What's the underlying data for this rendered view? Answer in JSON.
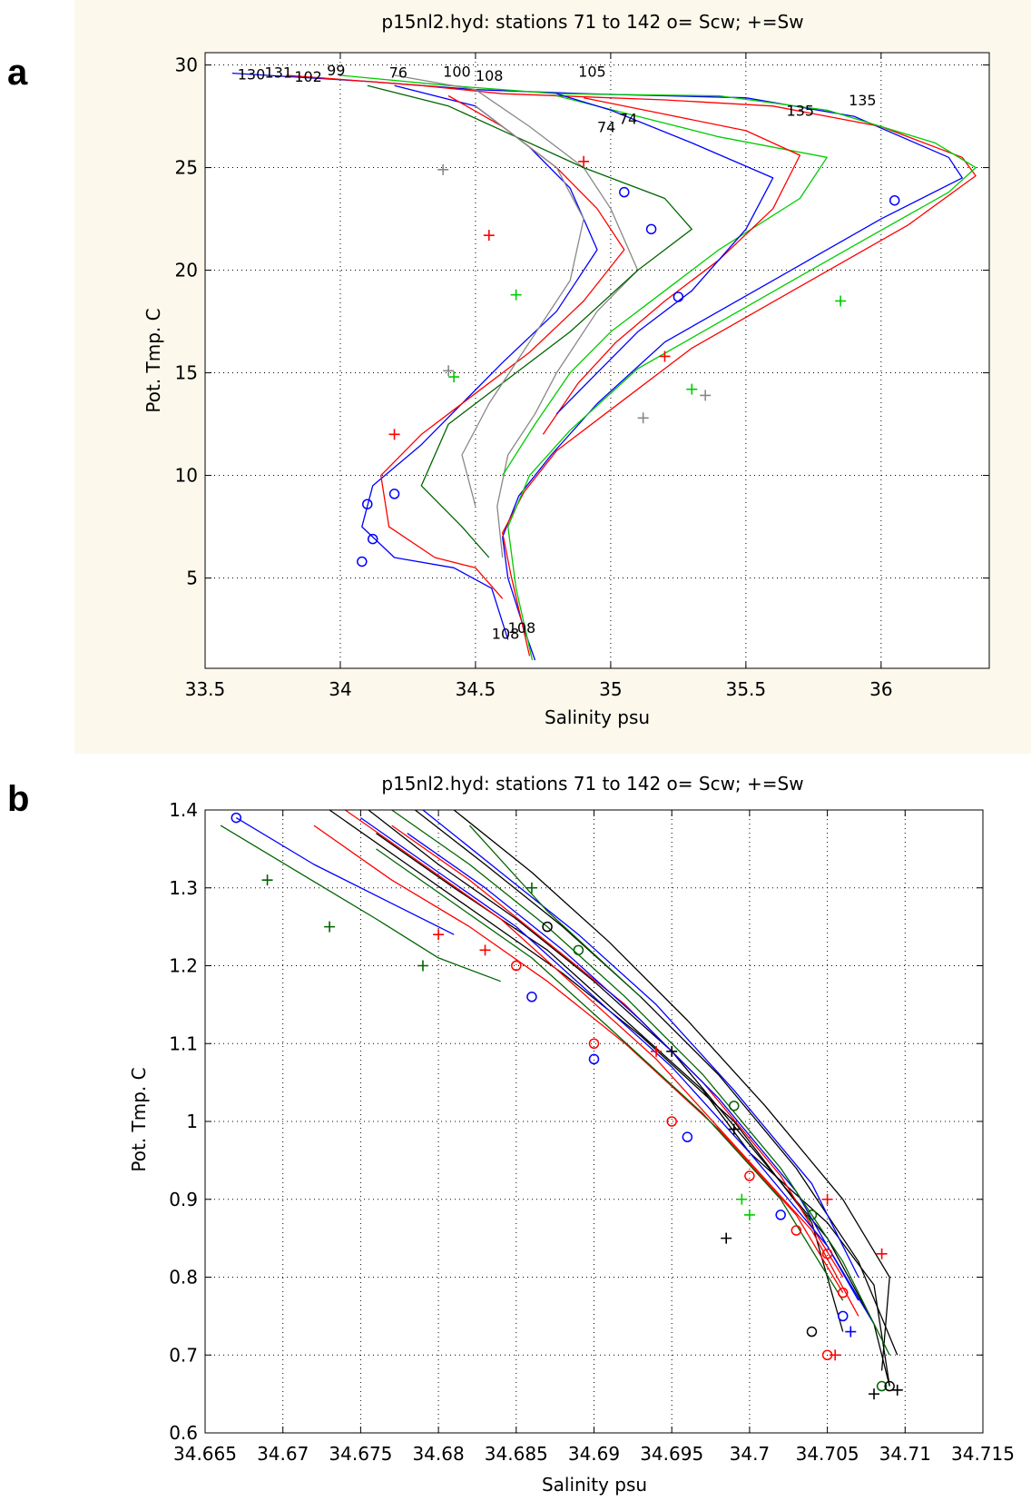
{
  "panels": [
    {
      "letter": "a"
    },
    {
      "letter": "b"
    }
  ],
  "chart_data": [
    {
      "type": "line",
      "title": "p15nl2.hyd: stations 71 to 142 o= Scw; +=Sw",
      "xlabel": "Salinity psu",
      "ylabel": "Pot. Tmp. C",
      "xlim": [
        33.5,
        36.4
      ],
      "ylim": [
        0.6,
        30.6
      ],
      "xticks": [
        33.5,
        34,
        34.5,
        35,
        35.5,
        36
      ],
      "xtick_labels": [
        "33.5",
        "34",
        "34.5",
        "35",
        "35.5",
        "36"
      ],
      "yticks": [
        5,
        10,
        15,
        20,
        25,
        30
      ],
      "ytick_labels": [
        "5",
        "10",
        "15",
        "20",
        "25",
        "30"
      ],
      "grid": true,
      "legend": "none",
      "colors": {
        "red": "#ff0000",
        "green": "#00cc00",
        "blue": "#0000ff",
        "gray": "#888888",
        "darkgreen": "#006400",
        "black": "#000000"
      },
      "series": [
        {
          "color": "#0000ff",
          "x": [
            33.6,
            34.1,
            34.5,
            34.9,
            35.5,
            35.9,
            36.25,
            36.3,
            36.0,
            35.6,
            35.2,
            34.95,
            34.78,
            34.66,
            34.6,
            34.62,
            34.68,
            34.72
          ],
          "y": [
            29.6,
            29.2,
            28.8,
            28.6,
            28.4,
            27.5,
            25.5,
            24.5,
            22.5,
            19.5,
            16.5,
            13.5,
            11.0,
            9.0,
            7.0,
            5.0,
            2.5,
            1.0
          ]
        },
        {
          "color": "#ff0000",
          "x": [
            33.8,
            34.3,
            34.6,
            35.2,
            35.6,
            36.0,
            36.3,
            36.35,
            36.1,
            35.7,
            35.3,
            35.0,
            34.8,
            34.68,
            34.6,
            34.63,
            34.7
          ],
          "y": [
            29.5,
            29.0,
            28.6,
            28.3,
            28.0,
            27.0,
            25.5,
            24.6,
            22.2,
            19.2,
            16.2,
            13.2,
            11.2,
            9.2,
            7.2,
            5.2,
            1.2
          ]
        },
        {
          "color": "#00cc00",
          "x": [
            34.0,
            34.4,
            34.8,
            35.4,
            35.8,
            36.2,
            36.35,
            36.25,
            35.9,
            35.5,
            35.1,
            34.85,
            34.7,
            34.62,
            34.65,
            34.71
          ],
          "y": [
            29.5,
            29.0,
            28.6,
            28.5,
            27.8,
            26.2,
            25.0,
            23.8,
            21.2,
            18.2,
            15.2,
            12.2,
            10.0,
            7.5,
            4.5,
            1.0
          ]
        },
        {
          "color": "#888888",
          "x": [
            34.2,
            34.5,
            34.7,
            34.9,
            35.0,
            35.1,
            34.95,
            34.8,
            34.72,
            34.62,
            34.58,
            34.6
          ],
          "y": [
            29.5,
            28.8,
            27.0,
            25.0,
            23.0,
            20.0,
            18.0,
            15.0,
            13.0,
            11.0,
            8.5,
            6.0
          ]
        },
        {
          "color": "#0000ff",
          "x": [
            34.2,
            34.5,
            34.7,
            34.85,
            34.95,
            34.8,
            34.6,
            34.45,
            34.3,
            34.12,
            34.08,
            34.2,
            34.42,
            34.56,
            34.62
          ],
          "y": [
            29.0,
            28.0,
            26.0,
            24.0,
            21.0,
            18.0,
            15.5,
            13.5,
            11.5,
            9.5,
            7.5,
            6.0,
            5.5,
            4.5,
            2.0
          ]
        },
        {
          "color": "#ff0000",
          "x": [
            34.4,
            34.6,
            34.8,
            34.95,
            35.05,
            34.9,
            34.7,
            34.5,
            34.3,
            34.15,
            34.18,
            34.35,
            34.5,
            34.6
          ],
          "y": [
            28.5,
            27.0,
            25.0,
            23.0,
            21.0,
            18.5,
            16.0,
            14.0,
            12.0,
            10.0,
            7.5,
            6.0,
            5.5,
            4.0
          ]
        },
        {
          "color": "#006400",
          "x": [
            34.1,
            34.4,
            34.65,
            34.9,
            35.2,
            35.3,
            35.1,
            34.85,
            34.6,
            34.4,
            34.3,
            34.45,
            34.55
          ],
          "y": [
            29.0,
            28.0,
            26.5,
            25.0,
            23.5,
            22.0,
            20.0,
            17.0,
            14.5,
            12.5,
            9.5,
            7.5,
            6.0
          ]
        },
        {
          "color": "#00cc00",
          "x": [
            34.8,
            35.1,
            35.4,
            35.8,
            35.7,
            35.4,
            35.2,
            35.0,
            34.85,
            34.72,
            34.6
          ],
          "y": [
            28.5,
            27.5,
            26.5,
            25.5,
            23.5,
            21.0,
            19.0,
            17.0,
            15.0,
            12.5,
            10.0
          ]
        },
        {
          "color": "#ff0000",
          "x": [
            34.9,
            35.2,
            35.5,
            35.7,
            35.6,
            35.4,
            35.2,
            35.02,
            34.88,
            34.75
          ],
          "y": [
            28.4,
            27.6,
            26.8,
            25.6,
            23.0,
            20.5,
            18.5,
            16.5,
            14.5,
            12.0
          ]
        },
        {
          "color": "#888888",
          "x": [
            34.5,
            34.65,
            34.8,
            34.9,
            34.85,
            34.7,
            34.55,
            34.45,
            34.5
          ],
          "y": [
            28.0,
            26.5,
            25.0,
            22.5,
            19.5,
            16.5,
            13.5,
            11.0,
            8.5
          ]
        },
        {
          "color": "#0000ff",
          "x": [
            34.8,
            35.0,
            35.3,
            35.6,
            35.5,
            35.3,
            35.1,
            34.95,
            34.8
          ],
          "y": [
            28.6,
            27.8,
            26.2,
            24.5,
            22.0,
            19.0,
            17.0,
            15.0,
            13.0
          ]
        }
      ],
      "markers": [
        {
          "symbol": "o",
          "color": "#0000ff",
          "x": [
            34.1,
            34.12,
            34.08,
            34.2,
            35.05,
            35.15,
            35.25,
            36.05
          ],
          "y": [
            8.6,
            6.9,
            5.8,
            9.1,
            23.8,
            22.0,
            18.7,
            23.4
          ]
        },
        {
          "symbol": "+",
          "color": "#00cc00",
          "x": [
            35.3,
            34.42,
            34.65,
            35.85
          ],
          "y": [
            14.2,
            14.8,
            18.8,
            18.5
          ]
        },
        {
          "symbol": "+",
          "color": "#888888",
          "x": [
            34.4,
            34.38,
            35.12,
            35.35
          ],
          "y": [
            15.1,
            24.9,
            12.8,
            13.9
          ]
        },
        {
          "symbol": "+",
          "color": "#ff0000",
          "x": [
            34.55,
            34.2,
            34.9,
            35.2
          ],
          "y": [
            21.7,
            12.0,
            25.3,
            15.8
          ]
        }
      ],
      "annotations": [
        {
          "text": "130",
          "x": 33.62,
          "y": 29.55
        },
        {
          "text": "131",
          "x": 33.72,
          "y": 29.65
        },
        {
          "text": "102",
          "x": 33.83,
          "y": 29.45
        },
        {
          "text": "99",
          "x": 33.95,
          "y": 29.75
        },
        {
          "text": "76",
          "x": 34.18,
          "y": 29.65
        },
        {
          "text": "100",
          "x": 34.38,
          "y": 29.7
        },
        {
          "text": "108",
          "x": 34.5,
          "y": 29.5
        },
        {
          "text": "105",
          "x": 34.88,
          "y": 29.7
        },
        {
          "text": "135",
          "x": 35.88,
          "y": 28.3
        },
        {
          "text": "135",
          "x": 35.65,
          "y": 27.8
        },
        {
          "text": "74",
          "x": 34.95,
          "y": 27.0
        },
        {
          "text": "74",
          "x": 35.03,
          "y": 27.4
        },
        {
          "text": "108",
          "x": 34.56,
          "y": 2.3
        },
        {
          "text": "108",
          "x": 34.62,
          "y": 2.6
        }
      ]
    },
    {
      "type": "line",
      "title": "p15nl2.hyd: stations 71 to 142 o= Scw; +=Sw",
      "xlabel": "Salinity psu",
      "ylabel": "Pot. Tmp. C",
      "xlim": [
        34.665,
        34.715
      ],
      "ylim": [
        0.6,
        1.4
      ],
      "xticks": [
        34.665,
        34.67,
        34.675,
        34.68,
        34.685,
        34.69,
        34.695,
        34.7,
        34.705,
        34.71,
        34.715
      ],
      "xtick_labels": [
        "34.665",
        "34.67",
        "34.675",
        "34.68",
        "34.685",
        "34.69",
        "34.695",
        "34.7",
        "34.705",
        "34.71",
        "34.715"
      ],
      "yticks": [
        0.6,
        0.7,
        0.8,
        0.9,
        1.0,
        1.1,
        1.2,
        1.3,
        1.4
      ],
      "ytick_labels": [
        "0.6",
        "0.7",
        "0.8",
        "0.9",
        "1",
        "1.1",
        "1.2",
        "1.3",
        "1.4"
      ],
      "grid": true,
      "legend": "none",
      "series": [
        {
          "color": "#000000",
          "x": [
            34.6755,
            34.68,
            34.685,
            34.69,
            34.695,
            34.7,
            34.705,
            34.708,
            34.709
          ],
          "y": [
            1.4,
            1.33,
            1.26,
            1.18,
            1.09,
            0.97,
            0.85,
            0.74,
            0.66
          ]
        },
        {
          "color": "#000000",
          "x": [
            34.6785,
            34.683,
            34.688,
            34.693,
            34.698,
            34.703,
            34.707,
            34.7095
          ],
          "y": [
            1.4,
            1.33,
            1.25,
            1.16,
            1.06,
            0.94,
            0.82,
            0.7
          ]
        },
        {
          "color": "#000000",
          "x": [
            34.681,
            34.686,
            34.691,
            34.696,
            34.701,
            34.706,
            34.709,
            34.7085
          ],
          "y": [
            1.4,
            1.32,
            1.23,
            1.13,
            1.02,
            0.9,
            0.8,
            0.68
          ]
        },
        {
          "color": "#000000",
          "x": [
            34.673,
            34.678,
            34.683,
            34.688,
            34.693,
            34.699,
            34.704,
            34.706
          ],
          "y": [
            1.4,
            1.33,
            1.26,
            1.19,
            1.11,
            1.0,
            0.87,
            0.73
          ]
        },
        {
          "color": "#000000",
          "x": [
            34.676,
            34.681,
            34.687,
            34.692,
            34.697,
            34.7,
            34.705,
            34.708,
            34.709
          ],
          "y": [
            1.37,
            1.3,
            1.22,
            1.13,
            1.04,
            0.96,
            0.87,
            0.79,
            0.66
          ]
        },
        {
          "color": "#ff0000",
          "x": [
            34.674,
            34.679,
            34.684,
            34.689,
            34.694,
            34.699,
            34.704,
            34.707
          ],
          "y": [
            1.4,
            1.33,
            1.26,
            1.17,
            1.08,
            0.97,
            0.86,
            0.75
          ]
        },
        {
          "color": "#ff0000",
          "x": [
            34.677,
            34.682,
            34.687,
            34.692,
            34.697,
            34.702,
            34.706
          ],
          "y": [
            1.38,
            1.31,
            1.23,
            1.15,
            1.05,
            0.93,
            0.8
          ]
        },
        {
          "color": "#ff0000",
          "x": [
            34.672,
            34.677,
            34.682,
            34.687,
            34.692,
            34.698,
            34.703,
            34.706
          ],
          "y": [
            1.38,
            1.31,
            1.25,
            1.18,
            1.1,
            0.99,
            0.88,
            0.78
          ]
        },
        {
          "color": "#0000ff",
          "x": [
            34.675,
            34.68,
            34.685,
            34.69,
            34.695,
            34.7,
            34.705,
            34.708
          ],
          "y": [
            1.39,
            1.32,
            1.25,
            1.16,
            1.07,
            0.96,
            0.84,
            0.74
          ]
        },
        {
          "color": "#0000ff",
          "x": [
            34.679,
            34.684,
            34.689,
            34.694,
            34.699,
            34.704,
            34.707
          ],
          "y": [
            1.4,
            1.32,
            1.24,
            1.15,
            1.04,
            0.92,
            0.8
          ]
        },
        {
          "color": "#0000ff",
          "x": [
            34.667,
            34.672,
            34.677,
            34.681
          ],
          "y": [
            1.39,
            1.33,
            1.28,
            1.24
          ]
        },
        {
          "color": "#0000ff",
          "x": [
            34.678,
            34.683,
            34.688,
            34.693,
            34.698,
            34.703,
            34.707
          ],
          "y": [
            1.37,
            1.3,
            1.22,
            1.13,
            1.03,
            0.91,
            0.77
          ]
        },
        {
          "color": "#006400",
          "x": [
            34.666,
            34.671,
            34.676,
            34.68,
            34.684
          ],
          "y": [
            1.38,
            1.32,
            1.26,
            1.21,
            1.18
          ]
        },
        {
          "color": "#006400",
          "x": [
            34.682,
            34.687,
            34.693
          ],
          "y": [
            1.38,
            1.27,
            1.16
          ]
        },
        {
          "color": "#006400",
          "x": [
            34.677,
            34.682,
            34.687,
            34.692,
            34.697,
            34.702,
            34.706,
            34.709
          ],
          "y": [
            1.4,
            1.33,
            1.25,
            1.16,
            1.06,
            0.94,
            0.82,
            0.7
          ]
        },
        {
          "color": "#006400",
          "x": [
            34.676,
            34.681,
            34.686,
            34.691,
            34.697,
            34.702,
            34.706
          ],
          "y": [
            1.35,
            1.28,
            1.21,
            1.12,
            1.01,
            0.9,
            0.77
          ]
        }
      ],
      "markers": [
        {
          "symbol": "o",
          "color": "#ff0000",
          "x": [
            34.685,
            34.69,
            34.695,
            34.7,
            34.703,
            34.705,
            34.706,
            34.705
          ],
          "y": [
            1.2,
            1.1,
            1.0,
            0.93,
            0.86,
            0.83,
            0.78,
            0.7
          ]
        },
        {
          "symbol": "o",
          "color": "#0000ff",
          "x": [
            34.667,
            34.686,
            34.69,
            34.696,
            34.702,
            34.706
          ],
          "y": [
            1.39,
            1.16,
            1.08,
            0.98,
            0.88,
            0.75
          ]
        },
        {
          "symbol": "o",
          "color": "#006400",
          "x": [
            34.689,
            34.699,
            34.704,
            34.7085
          ],
          "y": [
            1.22,
            1.02,
            0.88,
            0.66
          ]
        },
        {
          "symbol": "o",
          "color": "#000000",
          "x": [
            34.687,
            34.704,
            34.709
          ],
          "y": [
            1.25,
            0.73,
            0.66
          ]
        },
        {
          "symbol": "+",
          "color": "#006400",
          "x": [
            34.669,
            34.673,
            34.679,
            34.686
          ],
          "y": [
            1.31,
            1.25,
            1.2,
            1.3
          ]
        },
        {
          "symbol": "+",
          "color": "#ff0000",
          "x": [
            34.68,
            34.683,
            34.694,
            34.705,
            34.7085,
            34.7055
          ],
          "y": [
            1.24,
            1.22,
            1.09,
            0.9,
            0.83,
            0.7
          ]
        },
        {
          "symbol": "+",
          "color": "#000000",
          "x": [
            34.695,
            34.699,
            34.6985,
            34.708,
            34.7095
          ],
          "y": [
            1.09,
            0.99,
            0.85,
            0.65,
            0.655
          ]
        },
        {
          "symbol": "+",
          "color": "#00cc00",
          "x": [
            34.6995,
            34.7
          ],
          "y": [
            0.9,
            0.88
          ]
        },
        {
          "symbol": "+",
          "color": "#0000ff",
          "x": [
            34.7065
          ],
          "y": [
            0.73
          ]
        }
      ],
      "annotations": []
    }
  ]
}
